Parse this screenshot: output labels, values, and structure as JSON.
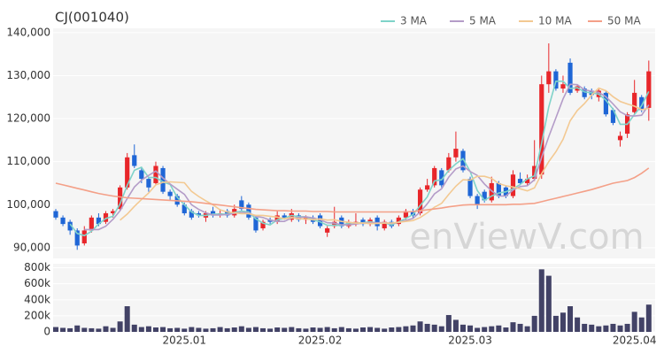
{
  "chart_data": [
    {
      "type": "candlestick",
      "title": "CJ(001040)",
      "watermark": "enViewV.com",
      "up_color": "#e8262a",
      "down_color": "#1f66d6",
      "open": [
        98500,
        97000,
        96000,
        94000,
        91000,
        94000,
        97000,
        96000,
        98000,
        99000,
        104000,
        111500,
        108000,
        106000,
        105000,
        108500,
        103000,
        102000,
        100000,
        98500,
        98000,
        97000,
        98500,
        97500,
        98500,
        97500,
        101000,
        100000,
        97000,
        94500,
        96500,
        96000,
        97500,
        96500,
        97500,
        96500,
        97000,
        97500,
        93500,
        95000,
        97000,
        95000,
        95500,
        96500,
        95500,
        97000,
        94500,
        96000,
        95500,
        97000,
        98500,
        98000,
        103500,
        104500,
        108000,
        108000,
        111000,
        112500,
        106000,
        102000,
        103000,
        101000,
        105000,
        104000,
        102000,
        106000,
        105000,
        106000,
        107000,
        128000,
        131000,
        127000,
        133000,
        126500,
        127000,
        126500,
        125000,
        126000,
        122000,
        115000,
        116500,
        121500,
        125000,
        122500
      ],
      "high": [
        99000,
        97500,
        96500,
        94500,
        95000,
        97500,
        98000,
        98500,
        99000,
        104500,
        112000,
        114000,
        108500,
        106500,
        110000,
        109000,
        103500,
        102500,
        100500,
        99000,
        98500,
        98500,
        99500,
        99000,
        99000,
        100000,
        102000,
        100500,
        97500,
        96500,
        97000,
        98500,
        98000,
        99000,
        98000,
        97500,
        97500,
        98000,
        95000,
        99500,
        97500,
        96500,
        98000,
        97000,
        97000,
        97500,
        96500,
        96500,
        97500,
        99000,
        99000,
        104000,
        106000,
        109000,
        108500,
        112000,
        117000,
        113000,
        106500,
        102500,
        103500,
        106500,
        105500,
        104500,
        108000,
        107500,
        107000,
        115000,
        130000,
        137500,
        131500,
        130000,
        134000,
        128000,
        127500,
        127000,
        127000,
        126500,
        122500,
        117000,
        121500,
        129000,
        125500,
        133500
      ],
      "low": [
        96500,
        95000,
        93000,
        89500,
        90500,
        93500,
        95000,
        95500,
        97000,
        98500,
        103500,
        108500,
        105000,
        103000,
        104500,
        102500,
        101000,
        99500,
        97500,
        96500,
        97000,
        96000,
        97000,
        97000,
        97000,
        97000,
        98500,
        96500,
        93500,
        94000,
        95500,
        95500,
        96500,
        96000,
        96000,
        95500,
        95500,
        94500,
        92500,
        94500,
        94500,
        94500,
        95000,
        95000,
        95000,
        94000,
        94000,
        94500,
        95000,
        96500,
        97000,
        97500,
        103000,
        104000,
        104000,
        107500,
        110000,
        107500,
        101500,
        99000,
        100500,
        100500,
        101500,
        101500,
        101500,
        104500,
        104500,
        105500,
        106000,
        126000,
        126500,
        126000,
        125500,
        126000,
        124500,
        124500,
        124000,
        120500,
        118500,
        113500,
        115500,
        121000,
        121500,
        119500
      ],
      "close": [
        97000,
        95500,
        94000,
        90500,
        94000,
        97000,
        95500,
        98000,
        98500,
        104000,
        111000,
        109000,
        106000,
        104000,
        109000,
        103000,
        102000,
        100000,
        98000,
        97000,
        97500,
        98000,
        97500,
        98000,
        97500,
        99000,
        99000,
        97000,
        94000,
        96000,
        96000,
        97500,
        97000,
        98000,
        96500,
        97000,
        96000,
        95000,
        94500,
        96000,
        95000,
        96000,
        96000,
        95500,
        96500,
        95000,
        96000,
        95000,
        97000,
        98500,
        97500,
        103500,
        104500,
        108500,
        104500,
        111000,
        113000,
        108000,
        102000,
        100000,
        101000,
        105000,
        102000,
        102000,
        107000,
        105000,
        106000,
        109000,
        128000,
        131000,
        127000,
        128000,
        126000,
        127500,
        125000,
        125500,
        126500,
        121000,
        119000,
        116000,
        121000,
        126000,
        122000,
        131000
      ],
      "series": [
        {
          "name": "3 MA",
          "color": "#7fd3c9",
          "values": [
            null,
            null,
            95500,
            93300,
            92800,
            93800,
            95500,
            96800,
            97300,
            100200,
            104500,
            108000,
            108700,
            106300,
            106300,
            105300,
            104700,
            101700,
            100000,
            98300,
            97500,
            97500,
            97800,
            97800,
            97800,
            98200,
            98500,
            98300,
            96700,
            95700,
            95300,
            96500,
            96800,
            97500,
            97200,
            97200,
            96500,
            96000,
            95200,
            95200,
            95200,
            95700,
            95700,
            95800,
            96000,
            95700,
            95800,
            95300,
            96000,
            96800,
            97700,
            99800,
            101800,
            105500,
            105800,
            108000,
            109500,
            110700,
            107700,
            103300,
            101000,
            102000,
            102700,
            103000,
            103700,
            104700,
            106000,
            106700,
            114300,
            122700,
            128700,
            128700,
            127000,
            127200,
            126200,
            126000,
            125700,
            124300,
            122200,
            118700,
            118700,
            121000,
            123000,
            126300
          ]
        },
        {
          "name": "5 MA",
          "color": "#b49cc8",
          "values": [
            null,
            null,
            null,
            null,
            94200,
            94200,
            94200,
            95000,
            96600,
            98600,
            101400,
            104100,
            105700,
            106800,
            107800,
            106200,
            104800,
            103600,
            102400,
            100000,
            98900,
            98100,
            97600,
            97600,
            97700,
            98000,
            98200,
            98100,
            97300,
            97000,
            96400,
            96100,
            96100,
            96900,
            97000,
            97200,
            96900,
            96500,
            95800,
            95700,
            95300,
            95300,
            95500,
            95700,
            95800,
            95800,
            95800,
            95600,
            95900,
            96300,
            96800,
            98300,
            100200,
            102500,
            103700,
            106400,
            108300,
            109000,
            107700,
            106800,
            104800,
            103200,
            102000,
            102000,
            103400,
            104200,
            104400,
            105800,
            111000,
            115800,
            120200,
            124600,
            128000,
            127900,
            126700,
            126400,
            126100,
            125100,
            123400,
            121600,
            120700,
            120600,
            120800,
            123200
          ]
        },
        {
          "name": "10 MA",
          "color": "#f3c992",
          "values": [
            null,
            null,
            null,
            null,
            null,
            null,
            null,
            null,
            null,
            96400,
            97800,
            99600,
            101200,
            102700,
            104600,
            105200,
            105300,
            105200,
            105100,
            103100,
            101900,
            100900,
            100000,
            98800,
            98300,
            98100,
            97900,
            97900,
            97500,
            97500,
            97300,
            97100,
            96700,
            97000,
            96700,
            96700,
            96500,
            96700,
            96400,
            96500,
            96100,
            95900,
            95700,
            95700,
            95600,
            95600,
            95700,
            95700,
            95900,
            96100,
            96300,
            97000,
            98100,
            99400,
            100300,
            102400,
            104300,
            105800,
            105700,
            106600,
            106600,
            106100,
            104900,
            104400,
            104100,
            103700,
            103200,
            103900,
            107200,
            110000,
            112300,
            115200,
            119500,
            121900,
            123500,
            125500,
            127100,
            126500,
            125100,
            124000,
            123400,
            122900,
            122100,
            122400
          ]
        },
        {
          "name": "50 MA",
          "color": "#f4a088",
          "values": [
            105000,
            104600,
            104200,
            103800,
            103400,
            103000,
            102600,
            102300,
            102000,
            101800,
            101600,
            101500,
            101400,
            101300,
            101200,
            101100,
            101000,
            100900,
            100800,
            100700,
            100500,
            100300,
            100100,
            99900,
            99700,
            99500,
            99300,
            99100,
            98900,
            98800,
            98700,
            98600,
            98600,
            98500,
            98500,
            98500,
            98400,
            98400,
            98400,
            98300,
            98300,
            98300,
            98300,
            98300,
            98300,
            98300,
            98300,
            98300,
            98300,
            98300,
            98400,
            98600,
            98800,
            99000,
            99200,
            99500,
            99700,
            99900,
            100000,
            100000,
            100000,
            100000,
            100000,
            100000,
            100100,
            100100,
            100200,
            100300,
            100700,
            101100,
            101500,
            101900,
            102300,
            102700,
            103100,
            103500,
            104000,
            104500,
            105000,
            105300,
            105600,
            106300,
            107300,
            108500
          ]
        }
      ],
      "ylim": [
        87500,
        141000
      ],
      "yticks": [
        {
          "value": 90000,
          "label": "90,000"
        },
        {
          "value": 100000,
          "label": "100,000"
        },
        {
          "value": 110000,
          "label": "110,000"
        },
        {
          "value": 120000,
          "label": "120,000"
        },
        {
          "value": 130000,
          "label": "130,000"
        },
        {
          "value": 140000,
          "label": "140,000"
        }
      ],
      "grid": true
    },
    {
      "type": "bar",
      "color": "#424266",
      "categories": [
        null,
        null,
        null,
        null,
        null,
        null,
        null,
        null,
        null,
        null,
        null,
        null,
        null,
        null,
        null,
        null,
        null,
        null,
        "2025.01",
        null,
        null,
        null,
        null,
        null,
        null,
        null,
        null,
        null,
        null,
        null,
        null,
        null,
        null,
        null,
        null,
        null,
        null,
        "2025.02",
        null,
        null,
        null,
        null,
        null,
        null,
        null,
        null,
        null,
        null,
        null,
        null,
        null,
        null,
        null,
        null,
        null,
        null,
        null,
        null,
        "2025.03",
        null,
        null,
        null,
        null,
        null,
        null,
        null,
        null,
        null,
        null,
        null,
        null,
        null,
        null,
        null,
        null,
        null,
        null,
        null,
        null,
        null,
        null,
        "2025.04",
        null,
        null
      ],
      "values": [
        60000,
        50000,
        45000,
        80000,
        50000,
        45000,
        40000,
        70000,
        50000,
        130000,
        320000,
        90000,
        60000,
        70000,
        55000,
        60000,
        45000,
        50000,
        40000,
        60000,
        50000,
        40000,
        45000,
        60000,
        45000,
        55000,
        70000,
        50000,
        60000,
        45000,
        40000,
        55000,
        50000,
        60000,
        45000,
        40000,
        55000,
        50000,
        60000,
        45000,
        60000,
        45000,
        40000,
        55000,
        60000,
        50000,
        40000,
        55000,
        60000,
        70000,
        80000,
        130000,
        100000,
        90000,
        70000,
        210000,
        150000,
        90000,
        80000,
        50000,
        60000,
        70000,
        80000,
        55000,
        120000,
        100000,
        70000,
        200000,
        780000,
        700000,
        200000,
        240000,
        320000,
        180000,
        100000,
        90000,
        70000,
        80000,
        100000,
        80000,
        100000,
        250000,
        180000,
        340000
      ],
      "ylim": [
        0,
        850000
      ],
      "yticks": [
        0,
        {
          "value": 200000,
          "label": "200k"
        },
        {
          "value": 400000,
          "label": "400k"
        },
        {
          "value": 600000,
          "label": "600k"
        },
        {
          "value": 800000,
          "label": "800k"
        }
      ],
      "grid": true
    }
  ]
}
